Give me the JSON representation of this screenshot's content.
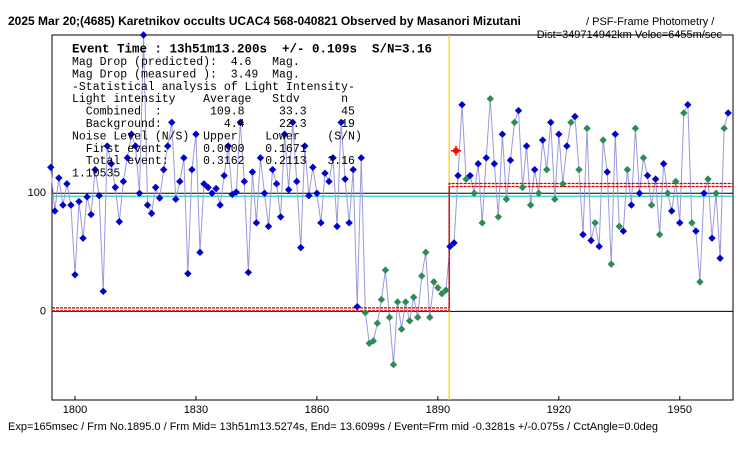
{
  "chart_data": {
    "type": "occultation-light-curve",
    "title": "2025 Mar 20;(4685) Karetnikov occults UCAC4 568-040821 Observed by Masanori Mizutani",
    "subtitle": "/ PSF-Frame Photometry /",
    "subtitle2": "Dist=349714942km Veloc=6455m/sec",
    "footer": "Exp=165msec / Frm No.1895.0 / Frm Mid= 13h51m13.5274s, End= 13.6099s / Event=Frm mid -0.3281s +/-0.075s / CctAngle=0.0deg",
    "event_text": "Event Time : 13h51m13.200s  +/- 0.109s  S/N=3.16",
    "annotations": [
      "Mag Drop (predicted):  4.6   Mag.",
      "Mag Drop (measured ):  3.49  Mag.",
      "-Statistical analysis of Light Intensity-",
      "Light intensity    Average   Stdv      n",
      "  Combined  :       109.8     33.3     45",
      "  Background:         4.4     22.3     19",
      "Noise Level (N/S)  Upper    Lower    (S/N)",
      "  First event:     0.0000   0.1671",
      "  Total event:     0.3162   0.2113   3.16",
      "1.10535"
    ],
    "xlim": [
      1794.3,
      1963.2
    ],
    "ylim": [
      -75,
      234
    ],
    "xticks": [
      1800,
      1830,
      1860,
      1890,
      1920,
      1950
    ],
    "yticks": [
      0,
      100
    ],
    "line_color": "#9999dd",
    "x": [
      1794,
      1795,
      1796,
      1797,
      1798,
      1799,
      1800,
      1801,
      1802,
      1803,
      1804,
      1805,
      1806,
      1807,
      1808,
      1809,
      1810,
      1811,
      1812,
      1813,
      1814,
      1815,
      1816,
      1817,
      1818,
      1819,
      1820,
      1821,
      1822,
      1823,
      1824,
      1825,
      1826,
      1827,
      1828,
      1829,
      1830,
      1831,
      1832,
      1833,
      1834,
      1835,
      1836,
      1837,
      1838,
      1839,
      1840,
      1841,
      1842,
      1843,
      1844,
      1845,
      1846,
      1847,
      1848,
      1849,
      1850,
      1851,
      1852,
      1853,
      1854,
      1855,
      1856,
      1857,
      1858,
      1859,
      1860,
      1861,
      1862,
      1863,
      1864,
      1865,
      1866,
      1867,
      1868,
      1869,
      1870,
      1871,
      1872,
      1873,
      1874,
      1875,
      1876,
      1877,
      1878,
      1879,
      1880,
      1881,
      1882,
      1883,
      1884,
      1885,
      1886,
      1887,
      1888,
      1889,
      1890,
      1891,
      1892,
      1893,
      1894,
      1895,
      1896,
      1897,
      1898,
      1899,
      1900,
      1901,
      1902,
      1903,
      1904,
      1905,
      1906,
      1907,
      1908,
      1909,
      1910,
      1911,
      1912,
      1913,
      1914,
      1915,
      1916,
      1917,
      1918,
      1919,
      1920,
      1921,
      1922,
      1923,
      1924,
      1925,
      1926,
      1927,
      1928,
      1929,
      1930,
      1931,
      1932,
      1933,
      1934,
      1935,
      1936,
      1937,
      1938,
      1939,
      1940,
      1941,
      1942,
      1943,
      1944,
      1945,
      1946,
      1947,
      1948,
      1949,
      1950,
      1951,
      1952,
      1953,
      1954,
      1955,
      1956,
      1957,
      1958,
      1959,
      1960,
      1961,
      1962
    ],
    "values": [
      122,
      85,
      113,
      90,
      108,
      90,
      31,
      93,
      62,
      97,
      82,
      120,
      98,
      17,
      140,
      125,
      105,
      76,
      110,
      130,
      150,
      140,
      100,
      234,
      90,
      83,
      105,
      96,
      120,
      140,
      160,
      95,
      110,
      130,
      32,
      120,
      150,
      50,
      108,
      105,
      100,
      104,
      90,
      115,
      140,
      99,
      101,
      160,
      110,
      33,
      118,
      75,
      130,
      100,
      72,
      120,
      108,
      80,
      150,
      103,
      160,
      110,
      54,
      140,
      98,
      122,
      100,
      75,
      117,
      110,
      130,
      72,
      160,
      112,
      75,
      120,
      4,
      130,
      -1,
      -27,
      -25,
      -10,
      10,
      35,
      -5,
      -45,
      8,
      -15,
      8,
      -8,
      12,
      -5,
      30,
      50,
      -5,
      25,
      20,
      15,
      18,
      55,
      58,
      115,
      175,
      112,
      115,
      100,
      125,
      75,
      130,
      180,
      125,
      80,
      150,
      95,
      128,
      160,
      170,
      105,
      140,
      90,
      120,
      100,
      145,
      120,
      160,
      95,
      150,
      108,
      140,
      160,
      165,
      120,
      65,
      155,
      60,
      75,
      55,
      145,
      118,
      40,
      150,
      72,
      68,
      120,
      90,
      155,
      100,
      130,
      115,
      90,
      112,
      65,
      125,
      100,
      85,
      110,
      75,
      168,
      175,
      75,
      68,
      25,
      100,
      112,
      62,
      100,
      45,
      155,
      168
    ],
    "marker_colors": [
      "mediumblue",
      "mediumblue",
      "mediumblue",
      "mediumblue",
      "mediumblue",
      "mediumblue",
      "mediumblue",
      "mediumblue",
      "mediumblue",
      "mediumblue",
      "mediumblue",
      "mediumblue",
      "mediumblue",
      "mediumblue",
      "mediumblue",
      "mediumblue",
      "mediumblue",
      "mediumblue",
      "mediumblue",
      "mediumblue",
      "mediumblue",
      "mediumblue",
      "mediumblue",
      "mediumblue",
      "mediumblue",
      "mediumblue",
      "mediumblue",
      "mediumblue",
      "mediumblue",
      "mediumblue",
      "mediumblue",
      "mediumblue",
      "mediumblue",
      "mediumblue",
      "mediumblue",
      "mediumblue",
      "mediumblue",
      "mediumblue",
      "mediumblue",
      "mediumblue",
      "mediumblue",
      "mediumblue",
      "mediumblue",
      "mediumblue",
      "mediumblue",
      "mediumblue",
      "mediumblue",
      "mediumblue",
      "mediumblue",
      "mediumblue",
      "mediumblue",
      "mediumblue",
      "mediumblue",
      "mediumblue",
      "mediumblue",
      "mediumblue",
      "mediumblue",
      "mediumblue",
      "mediumblue",
      "mediumblue",
      "mediumblue",
      "mediumblue",
      "mediumblue",
      "mediumblue",
      "mediumblue",
      "mediumblue",
      "mediumblue",
      "mediumblue",
      "mediumblue",
      "mediumblue",
      "mediumblue",
      "mediumblue",
      "mediumblue",
      "mediumblue",
      "mediumblue",
      "mediumblue",
      "mediumblue",
      "mediumblue",
      "seagreen",
      "seagreen",
      "seagreen",
      "seagreen",
      "seagreen",
      "seagreen",
      "seagreen",
      "seagreen",
      "seagreen",
      "seagreen",
      "seagreen",
      "seagreen",
      "seagreen",
      "seagreen",
      "seagreen",
      "seagreen",
      "seagreen",
      "seagreen",
      "seagreen",
      "seagreen",
      "seagreen",
      "mediumblue",
      "mediumblue",
      "mediumblue",
      "mediumblue",
      "seagreen",
      "mediumblue",
      "seagreen",
      "mediumblue",
      "seagreen",
      "mediumblue",
      "seagreen",
      "mediumblue",
      "seagreen",
      "mediumblue",
      "seagreen",
      "mediumblue",
      "seagreen",
      "mediumblue",
      "seagreen",
      "mediumblue",
      "seagreen",
      "mediumblue",
      "seagreen",
      "mediumblue",
      "seagreen",
      "mediumblue",
      "seagreen",
      "mediumblue",
      "seagreen",
      "mediumblue",
      "seagreen",
      "mediumblue",
      "seagreen",
      "mediumblue",
      "seagreen",
      "mediumblue",
      "seagreen",
      "mediumblue",
      "seagreen",
      "mediumblue",
      "seagreen",
      "mediumblue",
      "seagreen",
      "mediumblue",
      "seagreen",
      "mediumblue",
      "seagreen",
      "mediumblue",
      "seagreen",
      "mediumblue",
      "seagreen",
      "mediumblue",
      "seagreen",
      "mediumblue",
      "seagreen",
      "mediumblue",
      "seagreen",
      "mediumblue",
      "seagreen",
      "mediumblue",
      "seagreen",
      "mediumblue",
      "seagreen",
      "mediumblue",
      "seagreen",
      "mediumblue",
      "seagreen",
      "mediumblue",
      "seagreen",
      "mediumblue"
    ],
    "fit": {
      "color": "#cc0000",
      "before": 1.7,
      "after": 107,
      "event_x": 1892.8
    },
    "event_line_color": "#ffcc00",
    "reference": {
      "value": 97.5,
      "color": "#33cccc"
    },
    "event_point": {
      "x": 1894.5,
      "value": 136,
      "color": "red"
    }
  }
}
